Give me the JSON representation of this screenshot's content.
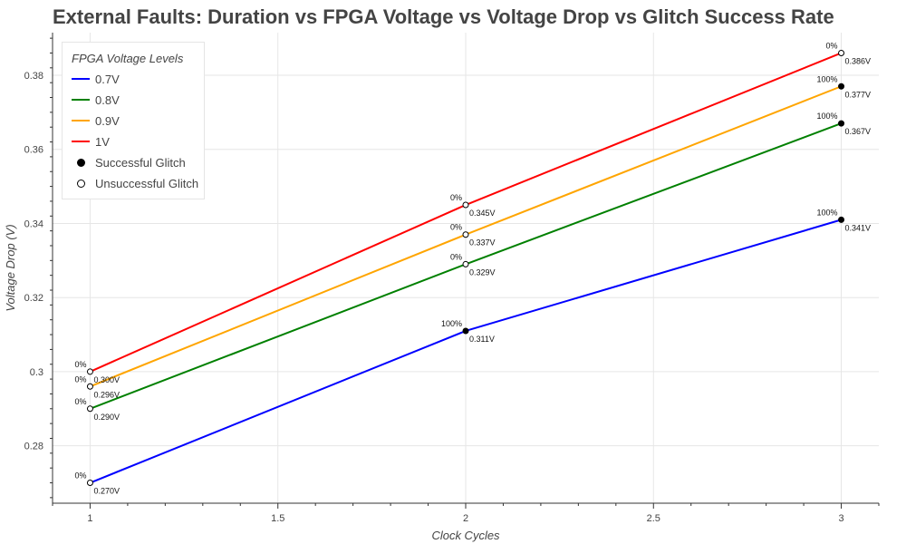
{
  "chart_data": {
    "type": "line",
    "title": "External Faults: Duration vs FPGA Voltage vs Voltage Drop vs Glitch Success Rate",
    "xlabel": "Clock Cycles",
    "ylabel": "Voltage Drop (V)",
    "xlim": [
      0.9,
      3.1
    ],
    "ylim": [
      0.2645,
      0.3915
    ],
    "x_ticks": [
      1,
      1.5,
      2,
      2.5,
      3
    ],
    "x_tick_labels": [
      "1",
      "1.5",
      "2",
      "2.5",
      "3"
    ],
    "y_ticks": [
      0.28,
      0.3,
      0.32,
      0.34,
      0.36,
      0.38
    ],
    "y_tick_labels": [
      "0.28",
      "0.3",
      "0.32",
      "0.34",
      "0.36",
      "0.38"
    ],
    "grid": true,
    "legend": {
      "title": "FPGA Voltage Levels",
      "placement": "top-left",
      "marker_items": [
        {
          "label": "Successful Glitch",
          "fill": "#000000"
        },
        {
          "label": "Unsuccessful Glitch",
          "fill": "#ffffff"
        }
      ]
    },
    "x": [
      1,
      2,
      3
    ],
    "series": [
      {
        "name": "0.7V",
        "color": "#0000ff",
        "values": [
          0.27,
          0.311,
          0.341
        ],
        "value_labels": [
          "0.270V",
          "0.311V",
          "0.341V"
        ],
        "success_labels": [
          "0%",
          "100%",
          "100%"
        ],
        "success": [
          false,
          true,
          true
        ]
      },
      {
        "name": "0.8V",
        "color": "#008000",
        "values": [
          0.29,
          0.329,
          0.367
        ],
        "value_labels": [
          "0.290V",
          "0.329V",
          "0.367V"
        ],
        "success_labels": [
          "0%",
          "0%",
          "100%"
        ],
        "success": [
          false,
          false,
          true
        ]
      },
      {
        "name": "0.9V",
        "color": "#ffa500",
        "values": [
          0.296,
          0.337,
          0.377
        ],
        "value_labels": [
          "0.296V",
          "0.337V",
          "0.377V"
        ],
        "success_labels": [
          "0%",
          "0%",
          "100%"
        ],
        "success": [
          false,
          false,
          true
        ]
      },
      {
        "name": "1V",
        "color": "#ff0000",
        "values": [
          0.3,
          0.345,
          0.386
        ],
        "value_labels": [
          "0.300V",
          "0.345V",
          "0.386V"
        ],
        "success_labels": [
          "0%",
          "0%",
          "0%"
        ],
        "success": [
          false,
          false,
          false
        ]
      }
    ]
  }
}
